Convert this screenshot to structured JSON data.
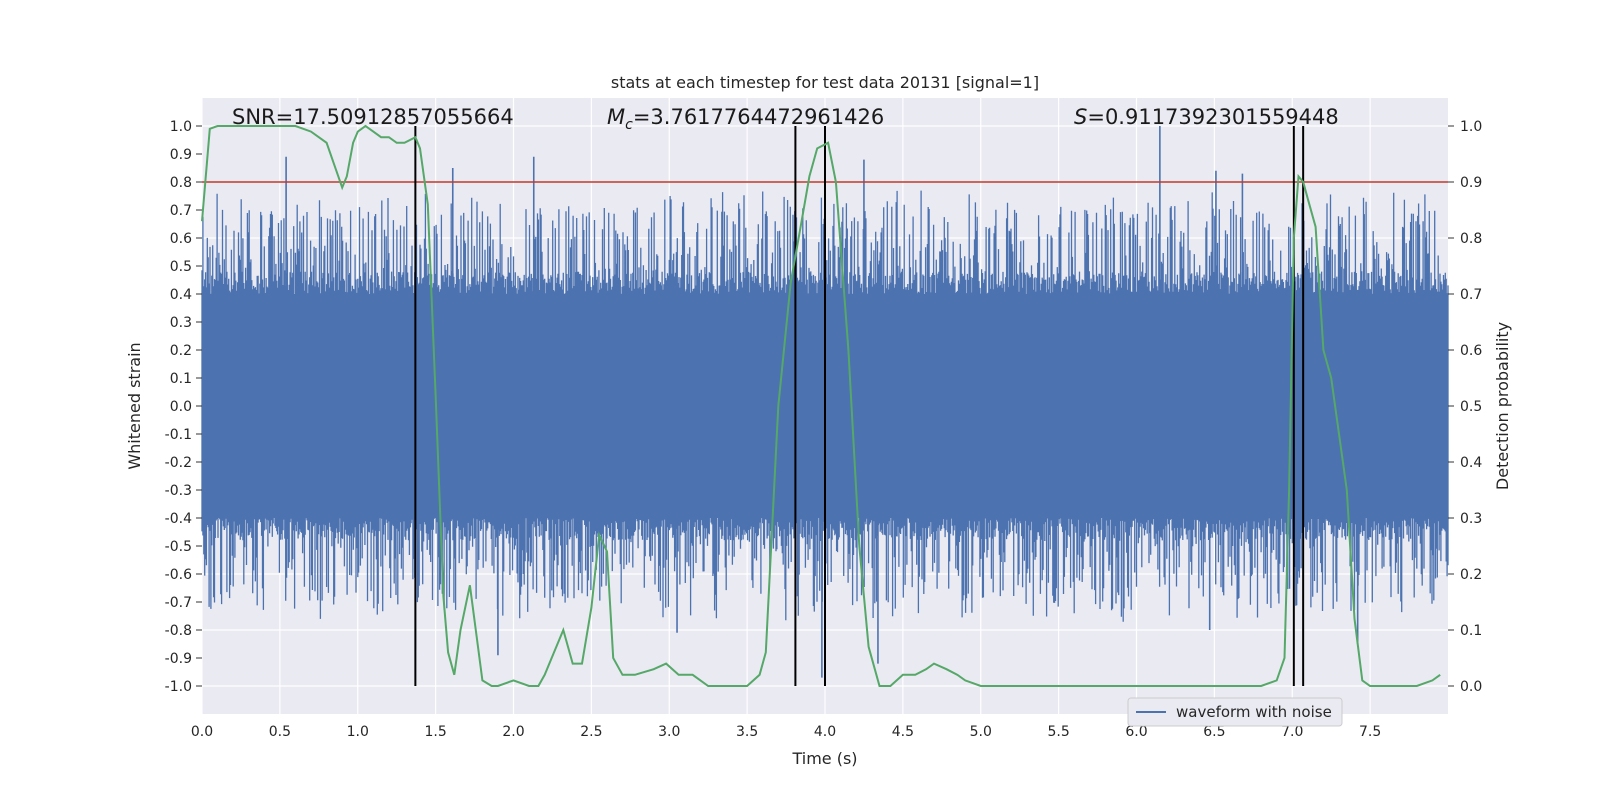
{
  "chart_data": {
    "type": "line",
    "title": "stats at each timestep for test data 20131 [signal=1]",
    "xlabel": "Time (s)",
    "ylabel": "Whitened strain",
    "ylabel_right": "Detection probability",
    "xlim": [
      0.0,
      8.0
    ],
    "ylim": [
      -1.1,
      1.1
    ],
    "ylim_right": [
      -0.05,
      1.05
    ],
    "x_ticks": [
      "0.0",
      "0.5",
      "1.0",
      "1.5",
      "2.0",
      "2.5",
      "3.0",
      "3.5",
      "4.0",
      "4.5",
      "5.0",
      "5.5",
      "6.0",
      "6.5",
      "7.0",
      "7.5"
    ],
    "y_ticks": [
      "1.0",
      "0.9",
      "0.8",
      "0.7",
      "0.6",
      "0.5",
      "0.4",
      "0.3",
      "0.2",
      "0.1",
      "0.0",
      "-0.1",
      "-0.2",
      "-0.3",
      "-0.4",
      "-0.5",
      "-0.6",
      "-0.7",
      "-0.8",
      "-0.9",
      "-1.0"
    ],
    "y_right_ticks": [
      "1.0",
      "0.9",
      "0.8",
      "0.7",
      "0.6",
      "0.5",
      "0.4",
      "0.3",
      "0.2",
      "0.1",
      "0.0"
    ],
    "grid": true,
    "legend_position": "lower-right",
    "legend": [
      "waveform with noise"
    ],
    "annotations": {
      "snr": "SNR=17.50912857055664",
      "mc_symbol": "M",
      "mc_sub": "c",
      "mc_value": "=3.7617764472961426",
      "s_symbol": "S",
      "s_value": "=0.9117392301559448"
    },
    "threshold": {
      "value": 0.9,
      "axis": "right",
      "color": "#c0392b"
    },
    "vertical_lines": [
      1.37,
      3.81,
      4.0,
      7.01,
      7.07
    ],
    "colors": {
      "waveform": "#4c72b0",
      "probability": "#55a868",
      "vlines": "#000000",
      "background": "#eaeaf2",
      "grid": "#ffffff"
    },
    "series": [
      {
        "name": "waveform with noise",
        "axis": "left",
        "t_range": [
          0.0,
          8.0
        ],
        "envelope_typical": 0.4,
        "spikes": [
          {
            "x": 0.54,
            "y": 0.89
          },
          {
            "x": 1.37,
            "y": -0.87
          },
          {
            "x": 1.61,
            "y": 0.85
          },
          {
            "x": 1.9,
            "y": -0.89
          },
          {
            "x": 2.13,
            "y": 0.89
          },
          {
            "x": 3.05,
            "y": -0.81
          },
          {
            "x": 3.98,
            "y": -0.97
          },
          {
            "x": 4.25,
            "y": 0.88
          },
          {
            "x": 4.34,
            "y": -0.92
          },
          {
            "x": 6.15,
            "y": 1.0
          },
          {
            "x": 6.47,
            "y": -0.8
          },
          {
            "x": 6.51,
            "y": 0.84
          },
          {
            "x": 6.68,
            "y": 0.83
          },
          {
            "x": 7.42,
            "y": -0.85
          }
        ]
      },
      {
        "name": "",
        "axis": "right",
        "x": [
          0.0,
          0.05,
          0.1,
          0.2,
          0.3,
          0.4,
          0.5,
          0.6,
          0.7,
          0.75,
          0.8,
          0.85,
          0.9,
          0.93,
          0.97,
          1.0,
          1.05,
          1.1,
          1.15,
          1.2,
          1.25,
          1.3,
          1.37,
          1.4,
          1.45,
          1.5,
          1.55,
          1.58,
          1.62,
          1.66,
          1.72,
          1.8,
          1.86,
          1.9,
          2.0,
          2.1,
          2.16,
          2.2,
          2.26,
          2.32,
          2.38,
          2.44,
          2.5,
          2.55,
          2.6,
          2.64,
          2.7,
          2.78,
          2.9,
          2.98,
          3.06,
          3.15,
          3.25,
          3.4,
          3.5,
          3.58,
          3.62,
          3.7,
          3.78,
          3.85,
          3.9,
          3.95,
          4.02,
          4.07,
          4.15,
          4.22,
          4.28,
          4.35,
          4.42,
          4.5,
          4.58,
          4.65,
          4.7,
          4.78,
          4.85,
          4.9,
          5.0,
          5.2,
          5.4,
          5.6,
          5.8,
          6.0,
          6.2,
          6.4,
          6.6,
          6.8,
          6.9,
          6.95,
          6.98,
          7.01,
          7.04,
          7.07,
          7.1,
          7.15,
          7.2,
          7.25,
          7.3,
          7.35,
          7.4,
          7.45,
          7.5,
          7.6,
          7.8,
          7.9,
          7.95
        ],
        "values": [
          0.83,
          0.995,
          1.0,
          1.0,
          1.0,
          1.0,
          1.0,
          1.0,
          0.99,
          0.98,
          0.97,
          0.93,
          0.89,
          0.91,
          0.97,
          0.99,
          1.0,
          0.99,
          0.98,
          0.98,
          0.97,
          0.97,
          0.98,
          0.96,
          0.86,
          0.52,
          0.16,
          0.06,
          0.02,
          0.1,
          0.18,
          0.01,
          0.0,
          0.0,
          0.01,
          0.0,
          0.0,
          0.02,
          0.06,
          0.1,
          0.04,
          0.04,
          0.14,
          0.27,
          0.24,
          0.05,
          0.02,
          0.02,
          0.03,
          0.04,
          0.02,
          0.02,
          0.0,
          0.0,
          0.0,
          0.02,
          0.06,
          0.5,
          0.72,
          0.83,
          0.91,
          0.96,
          0.97,
          0.9,
          0.6,
          0.25,
          0.07,
          0.0,
          0.0,
          0.02,
          0.02,
          0.03,
          0.04,
          0.03,
          0.02,
          0.01,
          0.0,
          0.0,
          0.0,
          0.0,
          0.0,
          0.0,
          0.0,
          0.0,
          0.0,
          0.0,
          0.01,
          0.05,
          0.35,
          0.8,
          0.91,
          0.9,
          0.87,
          0.82,
          0.6,
          0.55,
          0.45,
          0.35,
          0.12,
          0.01,
          0.0,
          0.0,
          0.0,
          0.01,
          0.02
        ]
      }
    ]
  }
}
